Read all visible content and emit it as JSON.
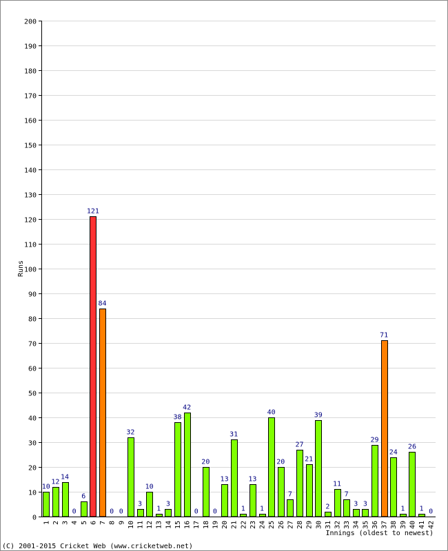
{
  "chart_data": {
    "type": "bar",
    "ylabel": "Runs",
    "xlabel": "Innings (oldest to newest)",
    "ylim": [
      0,
      200
    ],
    "ytick_step": 10,
    "grid": true,
    "categories": [
      "1",
      "2",
      "3",
      "4",
      "5",
      "6",
      "7",
      "8",
      "9",
      "10",
      "11",
      "12",
      "13",
      "14",
      "15",
      "16",
      "17",
      "18",
      "19",
      "20",
      "21",
      "22",
      "23",
      "24",
      "25",
      "26",
      "27",
      "28",
      "29",
      "30",
      "31",
      "32",
      "33",
      "34",
      "35",
      "36",
      "37",
      "38",
      "39",
      "40",
      "41",
      "42"
    ],
    "values": [
      10,
      12,
      14,
      0,
      6,
      121,
      84,
      0,
      0,
      32,
      3,
      10,
      1,
      3,
      38,
      42,
      0,
      20,
      0,
      13,
      31,
      1,
      13,
      1,
      40,
      20,
      7,
      27,
      21,
      39,
      2,
      11,
      7,
      3,
      3,
      29,
      71,
      24,
      1,
      26,
      1,
      0
    ],
    "colors": {
      "default": "#80ff00",
      "fifty": "#ff8000",
      "hundred": "#ff3333",
      "value_label": "#000080",
      "grid": "#d8d8d8"
    }
  },
  "copyright": "(C) 2001-2015 Cricket Web (www.cricketweb.net)"
}
